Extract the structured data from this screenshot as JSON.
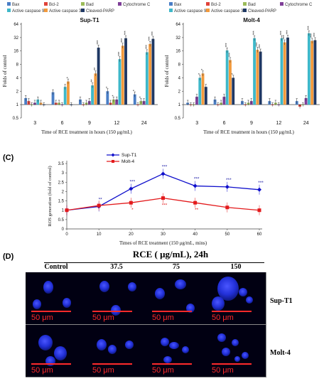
{
  "colors": {
    "Bax": "#4a7ec6",
    "Bcl-2": "#e0433a",
    "Bad": "#9bbb59",
    "Cytochrome C": "#7f3f98",
    "Active caspase 9": "#3fb8c9",
    "Active caspase 3": "#f39a3c",
    "Cleaved-PARP": "#1f3864",
    "sup": "#1010cc",
    "molt": "#e31a1c",
    "star_blue": "#1a1aa6",
    "star_red": "#e31a1c"
  },
  "chart_data": [
    {
      "type": "bar",
      "title": "Sup-T1",
      "xlabel": "Time of RCE treatment in hours (150 μg/mL)",
      "ylabel": "Folds of control",
      "yscale": "log2",
      "ylim": [
        0.5,
        64
      ],
      "yticks": [
        "0.5",
        "1",
        "2",
        "4",
        "8",
        "16",
        "32",
        "64"
      ],
      "categories": [
        "3",
        "6",
        "9",
        "12",
        "24"
      ],
      "series": [
        {
          "name": "Bax",
          "values": [
            1.4,
            1.9,
            1.3,
            2.0,
            1.7
          ],
          "stars": [
            "",
            "",
            "",
            "*",
            "*"
          ]
        },
        {
          "name": "Bcl-2",
          "values": [
            1.2,
            1.1,
            1.0,
            1.1,
            1.0
          ],
          "stars": [
            "",
            "",
            "",
            "",
            ""
          ]
        },
        {
          "name": "Bad",
          "values": [
            1.0,
            1.1,
            1.1,
            1.3,
            1.2
          ],
          "stars": [
            "",
            "",
            "",
            "*",
            "*"
          ]
        },
        {
          "name": "Cytochrome C",
          "values": [
            1.1,
            1.0,
            1.2,
            1.3,
            1.2
          ],
          "stars": [
            "",
            "",
            "",
            "",
            ""
          ]
        },
        {
          "name": "Active caspase 9",
          "values": [
            1.3,
            2.5,
            2.7,
            10.5,
            15.0
          ],
          "stars": [
            "",
            "",
            "**",
            "***",
            "***"
          ]
        },
        {
          "name": "Active caspase 3",
          "values": [
            1.1,
            3.3,
            5.0,
            21.0,
            23.0
          ],
          "stars": [
            "",
            "*",
            "**",
            "***",
            "***"
          ]
        },
        {
          "name": "Cleaved-PARP",
          "values": [
            1.0,
            1.0,
            19.0,
            31.0,
            30.0
          ],
          "stars": [
            "",
            "",
            "***",
            "***",
            "***"
          ]
        }
      ]
    },
    {
      "type": "bar",
      "title": "Molt-4",
      "xlabel": "Time of RCE treatment in hours (150 μg/mL)",
      "ylabel": "Folds of control",
      "yscale": "log2",
      "ylim": [
        0.5,
        64
      ],
      "yticks": [
        "0.5",
        "1",
        "2",
        "4",
        "8",
        "16",
        "32",
        "64"
      ],
      "categories": [
        "3",
        "6",
        "9",
        "12",
        "24"
      ],
      "series": [
        {
          "name": "Bax",
          "values": [
            1.1,
            1.3,
            1.2,
            1.2,
            1.2
          ],
          "stars": [
            "",
            "",
            "",
            "",
            ""
          ]
        },
        {
          "name": "Bcl-2",
          "values": [
            1.0,
            1.0,
            1.0,
            1.0,
            0.9
          ],
          "stars": [
            "",
            "",
            "",
            "",
            ""
          ]
        },
        {
          "name": "Bad",
          "values": [
            1.0,
            1.1,
            1.1,
            1.1,
            1.0
          ],
          "stars": [
            "",
            "",
            "",
            "",
            ""
          ]
        },
        {
          "name": "Cytochrome C",
          "values": [
            1.5,
            1.5,
            1.2,
            1.0,
            1.4
          ],
          "stars": [
            "",
            "",
            "",
            "",
            ""
          ]
        },
        {
          "name": "Active caspase 9",
          "values": [
            4.0,
            16.5,
            31.0,
            31.0,
            40.0
          ],
          "stars": [
            "*",
            "***",
            "***",
            "***",
            "***"
          ]
        },
        {
          "name": "Active caspase 3",
          "values": [
            5.0,
            10.0,
            17.0,
            25.0,
            27.0
          ],
          "stars": [
            "*",
            "***",
            "***",
            "***",
            "***"
          ]
        },
        {
          "name": "Cleaved-PARP",
          "values": [
            2.5,
            4.0,
            15.5,
            32.0,
            28.0
          ],
          "stars": [
            "",
            "*",
            "***",
            "***",
            "***"
          ]
        }
      ]
    },
    {
      "type": "line",
      "panel": "(C)",
      "xlabel": "Times of RCE treatment (150 μg/mL, mins)",
      "ylabel": "ROS generation (fold of control)",
      "x": [
        0,
        10,
        20,
        30,
        40,
        50,
        60
      ],
      "xlim": [
        0,
        60
      ],
      "ylim": [
        0,
        3.5
      ],
      "xticks": [
        "0",
        "10",
        "20",
        "30",
        "40",
        "50",
        "60"
      ],
      "yticks": [
        "0",
        "0.5",
        "1",
        "1.5",
        "2",
        "2.5",
        "3",
        "3.5"
      ],
      "series": [
        {
          "name": "Sup-T1",
          "values": [
            1.0,
            1.2,
            2.15,
            2.95,
            2.3,
            2.25,
            2.1
          ],
          "stars": [
            "",
            "**",
            "***",
            "***",
            "***",
            "***",
            "***"
          ]
        },
        {
          "name": "Molt-4",
          "values": [
            1.0,
            1.25,
            1.4,
            1.65,
            1.4,
            1.15,
            1.0
          ],
          "stars": [
            "",
            "",
            "*",
            "***",
            "**",
            "",
            ""
          ]
        }
      ]
    }
  ],
  "panel_d": {
    "label": "(D)",
    "heading": "RCE ( μg/mL), 24h",
    "columns": [
      "Control",
      "37.5",
      "75",
      "150"
    ],
    "rows": [
      "Sup-T1",
      "Molt-4"
    ],
    "scale_bar": "50 μm"
  }
}
